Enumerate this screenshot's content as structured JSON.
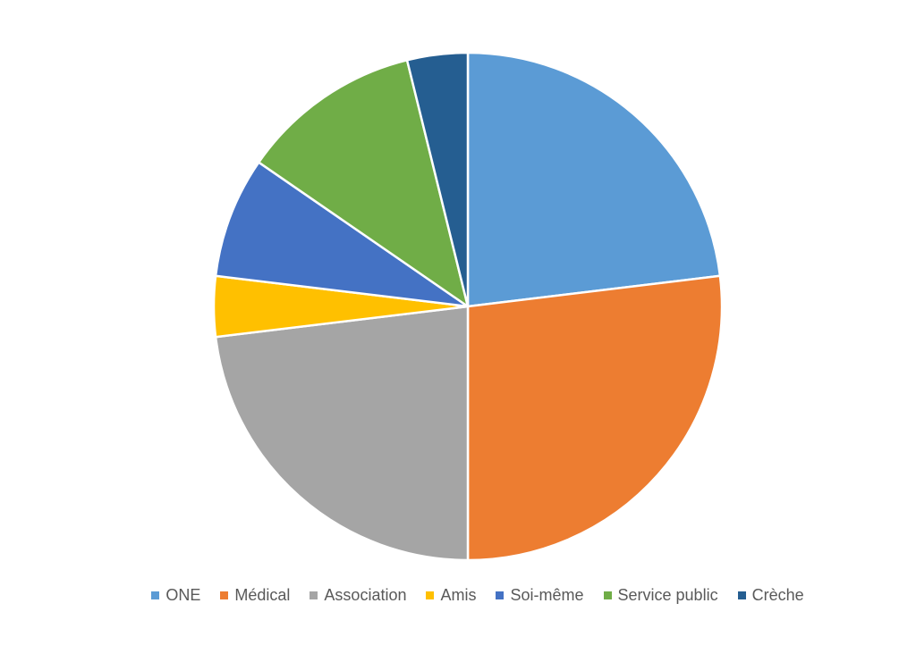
{
  "chart_data": {
    "type": "pie",
    "title": "",
    "categories": [
      "ONE",
      "Médical",
      "Association",
      "Amis",
      "Soi-même",
      "Service public",
      "Crèche"
    ],
    "values": [
      24,
      28,
      24,
      4,
      8,
      12,
      4
    ],
    "unit": "%",
    "colors": [
      "#5B9BD5",
      "#ED7D31",
      "#A5A5A5",
      "#FFC000",
      "#4472C4",
      "#70AD47",
      "#255E91"
    ],
    "start_angle_deg": 0,
    "direction": "clockwise",
    "legend_position": "bottom"
  }
}
